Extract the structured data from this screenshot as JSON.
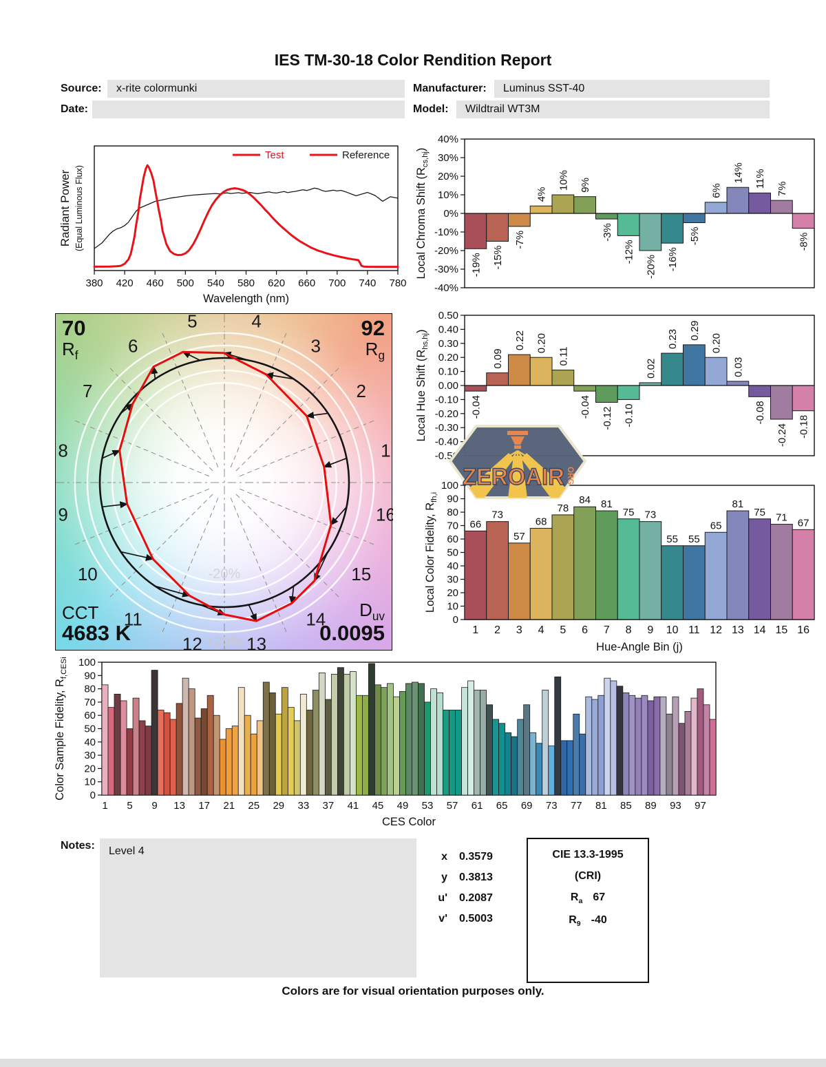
{
  "title": "IES TM-30-18 Color Rendition Report",
  "header": {
    "source_label": "Source:",
    "source_value": "x-rite colormunki",
    "date_label": "Date:",
    "date_value": "",
    "manufacturer_label": "Manufacturer:",
    "manufacturer_value": "Luminus SST-40",
    "model_label": "Model:",
    "model_value": "Wildtrail WT3M"
  },
  "watermark": {
    "name": "ZEROAIR",
    "suffix": "ORG"
  },
  "notes": {
    "label": "Notes:",
    "value": "Level 4"
  },
  "chromaticity": {
    "rows": [
      {
        "label": "x",
        "value": "0.3579"
      },
      {
        "label": "y",
        "value": "0.3813"
      },
      {
        "label": "u'",
        "value": "0.2087"
      },
      {
        "label": "v'",
        "value": "0.5003"
      }
    ]
  },
  "cri_box": {
    "title": "CIE 13.3-1995",
    "subtitle": "(CRI)",
    "ra_base": "R",
    "ra_sub": "a",
    "ra_value": "67",
    "r9_base": "R",
    "r9_sub": "9",
    "r9_value": "-40"
  },
  "footer": "Colors are for visual orientation purposes only.",
  "cvg": {
    "rf_value": "70",
    "rf_base": "R",
    "rf_sub": "f",
    "rg_value": "92",
    "rg_base": "R",
    "rg_sub": "g",
    "cct_label": "CCT",
    "cct_value": "4683 K",
    "duv_base": "D",
    "duv_sub": "uv",
    "duv_value": "0.0095",
    "inner_ring_label": "-20%",
    "outer_ring_label": "+20%"
  },
  "bin_colors": [
    "#a84f5a",
    "#b96355",
    "#cd8a46",
    "#ddb45e",
    "#aba452",
    "#82a156",
    "#5f9c5c",
    "#54bb95",
    "#74b0a4",
    "#35898d",
    "#3f77a2",
    "#94a8d6",
    "#8487bc",
    "#765a9f",
    "#a07da0",
    "#d480a9"
  ],
  "chart_data": [
    {
      "id": "spd",
      "type": "line",
      "xlabel": "Wavelength (nm)",
      "ylabel": "Radiant Power",
      "ylabel2": "(Equal Luminous Flux)",
      "xlim": [
        380,
        780
      ],
      "xtick_step": 40,
      "ylim": [
        0,
        1
      ],
      "grid": false,
      "legend_position": "top-right",
      "legend": [
        {
          "name": "Test",
          "swatch_color": "#e8121a",
          "text_color": "#e8121a"
        },
        {
          "name": "Reference",
          "swatch_color": "#e8121a",
          "text_color": "#1a1a1a"
        }
      ],
      "series": [
        {
          "name": "Test",
          "color": "#e8121a",
          "width": 3,
          "points": [
            [
              380,
              0.004
            ],
            [
              400,
              0.005
            ],
            [
              410,
              0.008
            ],
            [
              415,
              0.012
            ],
            [
              420,
              0.03
            ],
            [
              425,
              0.07
            ],
            [
              428,
              0.12
            ],
            [
              430,
              0.18
            ],
            [
              433,
              0.28
            ],
            [
              435,
              0.38
            ],
            [
              438,
              0.5
            ],
            [
              440,
              0.62
            ],
            [
              443,
              0.74
            ],
            [
              445,
              0.82
            ],
            [
              448,
              0.9
            ],
            [
              450,
              0.93
            ],
            [
              452,
              0.91
            ],
            [
              455,
              0.86
            ],
            [
              458,
              0.79
            ],
            [
              460,
              0.71
            ],
            [
              463,
              0.6
            ],
            [
              465,
              0.52
            ],
            [
              468,
              0.42
            ],
            [
              470,
              0.33
            ],
            [
              473,
              0.26
            ],
            [
              475,
              0.21
            ],
            [
              478,
              0.17
            ],
            [
              480,
              0.145
            ],
            [
              485,
              0.12
            ],
            [
              490,
              0.11
            ],
            [
              495,
              0.112
            ],
            [
              500,
              0.125
            ],
            [
              505,
              0.155
            ],
            [
              510,
              0.205
            ],
            [
              515,
              0.27
            ],
            [
              520,
              0.345
            ],
            [
              525,
              0.425
            ],
            [
              530,
              0.5
            ],
            [
              535,
              0.565
            ],
            [
              540,
              0.615
            ],
            [
              545,
              0.655
            ],
            [
              550,
              0.685
            ],
            [
              555,
              0.705
            ],
            [
              560,
              0.715
            ],
            [
              565,
              0.72
            ],
            [
              570,
              0.715
            ],
            [
              575,
              0.705
            ],
            [
              580,
              0.69
            ],
            [
              585,
              0.665
            ],
            [
              590,
              0.635
            ],
            [
              595,
              0.6
            ],
            [
              600,
              0.565
            ],
            [
              605,
              0.525
            ],
            [
              610,
              0.49
            ],
            [
              615,
              0.45
            ],
            [
              620,
              0.415
            ],
            [
              625,
              0.38
            ],
            [
              630,
              0.35
            ],
            [
              635,
              0.32
            ],
            [
              640,
              0.29
            ],
            [
              645,
              0.265
            ],
            [
              650,
              0.24
            ],
            [
              655,
              0.22
            ],
            [
              660,
              0.2
            ],
            [
              665,
              0.18
            ],
            [
              670,
              0.165
            ],
            [
              675,
              0.15
            ],
            [
              680,
              0.14
            ],
            [
              685,
              0.128
            ],
            [
              690,
              0.118
            ],
            [
              695,
              0.108
            ],
            [
              700,
              0.1
            ],
            [
              705,
              0.092
            ],
            [
              710,
              0.085
            ],
            [
              715,
              0.078
            ],
            [
              720,
              0.072
            ],
            [
              725,
              0.067
            ],
            [
              728,
              0.063
            ],
            [
              730,
              0.04
            ],
            [
              732,
              0.012
            ],
            [
              735,
              0.005
            ],
            [
              740,
              0.003
            ],
            [
              760,
              0.002
            ],
            [
              780,
              0.002
            ]
          ]
        },
        {
          "name": "Reference",
          "color": "#1a1a1a",
          "width": 1.3,
          "points": [
            [
              380,
              0.17
            ],
            [
              385,
              0.195
            ],
            [
              390,
              0.22
            ],
            [
              395,
              0.26
            ],
            [
              400,
              0.3
            ],
            [
              405,
              0.33
            ],
            [
              410,
              0.35
            ],
            [
              415,
              0.36
            ],
            [
              420,
              0.38
            ],
            [
              425,
              0.41
            ],
            [
              430,
              0.46
            ],
            [
              435,
              0.51
            ],
            [
              440,
              0.54
            ],
            [
              445,
              0.555
            ],
            [
              450,
              0.57
            ],
            [
              455,
              0.585
            ],
            [
              460,
              0.6
            ],
            [
              470,
              0.615
            ],
            [
              480,
              0.63
            ],
            [
              490,
              0.64
            ],
            [
              500,
              0.65
            ],
            [
              510,
              0.658
            ],
            [
              520,
              0.663
            ],
            [
              530,
              0.668
            ],
            [
              540,
              0.672
            ],
            [
              545,
              0.669
            ],
            [
              550,
              0.674
            ],
            [
              555,
              0.678
            ],
            [
              560,
              0.672
            ],
            [
              565,
              0.676
            ],
            [
              570,
              0.68
            ],
            [
              575,
              0.674
            ],
            [
              580,
              0.678
            ],
            [
              585,
              0.682
            ],
            [
              590,
              0.676
            ],
            [
              595,
              0.671
            ],
            [
              600,
              0.676
            ],
            [
              605,
              0.682
            ],
            [
              610,
              0.687
            ],
            [
              615,
              0.68
            ],
            [
              620,
              0.677
            ],
            [
              625,
              0.684
            ],
            [
              630,
              0.69
            ],
            [
              635,
              0.681
            ],
            [
              640,
              0.687
            ],
            [
              645,
              0.692
            ],
            [
              650,
              0.7
            ],
            [
              655,
              0.706
            ],
            [
              660,
              0.7
            ],
            [
              665,
              0.71
            ],
            [
              670,
              0.722
            ],
            [
              675,
              0.715
            ],
            [
              680,
              0.7
            ],
            [
              685,
              0.692
            ],
            [
              690,
              0.697
            ],
            [
              695,
              0.703
            ],
            [
              700,
              0.696
            ],
            [
              705,
              0.701
            ],
            [
              710,
              0.69
            ],
            [
              715,
              0.678
            ],
            [
              720,
              0.664
            ],
            [
              725,
              0.652
            ],
            [
              730,
              0.662
            ],
            [
              735,
              0.672
            ],
            [
              740,
              0.682
            ],
            [
              745,
              0.669
            ],
            [
              750,
              0.654
            ],
            [
              755,
              0.628
            ],
            [
              760,
              0.601
            ],
            [
              765,
              0.622
            ],
            [
              770,
              0.643
            ],
            [
              775,
              0.636
            ],
            [
              780,
              0.63
            ]
          ]
        }
      ]
    },
    {
      "id": "chroma_shift",
      "type": "bar",
      "ylabel": "Local Chroma Shift (R_{cs,hj})",
      "ylim": [
        -40,
        40
      ],
      "ytick_step": 10,
      "value_suffix": "%",
      "categories": [
        1,
        2,
        3,
        4,
        5,
        6,
        7,
        8,
        9,
        10,
        11,
        12,
        13,
        14,
        15,
        16
      ],
      "values": [
        -19,
        -15,
        -7,
        4,
        10,
        9,
        -3,
        -12,
        -20,
        -16,
        -5,
        6,
        14,
        11,
        7,
        -8
      ]
    },
    {
      "id": "hue_shift",
      "type": "bar",
      "ylabel": "Local Hue Shift (R_{hs,hj})",
      "ylim": [
        -0.5,
        0.5
      ],
      "ytick_step": 0.1,
      "categories": [
        1,
        2,
        3,
        4,
        5,
        6,
        7,
        8,
        9,
        10,
        11,
        12,
        13,
        14,
        15,
        16
      ],
      "values": [
        -0.04,
        0.09,
        0.22,
        0.2,
        0.11,
        -0.04,
        -0.12,
        -0.1,
        0.02,
        0.23,
        0.29,
        0.2,
        0.03,
        -0.08,
        -0.24,
        -0.18
      ]
    },
    {
      "id": "local_fidelity",
      "type": "bar",
      "ylabel": "Local Color Fidelity, R_{fh,i}",
      "xlabel": "Hue-Angle Bin (j)",
      "ylim": [
        0,
        100
      ],
      "ytick_step": 10,
      "categories": [
        1,
        2,
        3,
        4,
        5,
        6,
        7,
        8,
        9,
        10,
        11,
        12,
        13,
        14,
        15,
        16
      ],
      "values": [
        66,
        73,
        57,
        68,
        78,
        84,
        81,
        75,
        73,
        55,
        55,
        65,
        81,
        75,
        71,
        67
      ]
    },
    {
      "id": "ces_fidelity",
      "type": "bar",
      "ylabel": "Color Sample Fidelity, R_{f,CESi}",
      "xlabel": "CES Color",
      "ylim": [
        0,
        100
      ],
      "ytick_step": 10,
      "xticks": [
        1,
        5,
        9,
        13,
        17,
        21,
        25,
        29,
        33,
        37,
        41,
        45,
        49,
        53,
        57,
        61,
        65,
        69,
        73,
        77,
        81,
        85,
        89,
        93,
        97
      ],
      "values": [
        83,
        66,
        76,
        71,
        50,
        73,
        56,
        52,
        94,
        64,
        62,
        57,
        69,
        88,
        80,
        58,
        65,
        75,
        60,
        42,
        50,
        52,
        81,
        60,
        46,
        56,
        85,
        77,
        61,
        81,
        66,
        56,
        76,
        64,
        79,
        92,
        72,
        91,
        96,
        91,
        93,
        75,
        75,
        99,
        83,
        81,
        84,
        74,
        78,
        84,
        85,
        84,
        70,
        80,
        77,
        64,
        64,
        64,
        81,
        86,
        79,
        79,
        68,
        57,
        54,
        47,
        44,
        57,
        68,
        47,
        39,
        79,
        37,
        89,
        41,
        41,
        61,
        46,
        74,
        72,
        75,
        88,
        86,
        82,
        77,
        75,
        73,
        75,
        71,
        74,
        74,
        61,
        74,
        54,
        63,
        73,
        80,
        68,
        57
      ],
      "colors": [
        "#eab0c0",
        "#d4697e",
        "#6e3d44",
        "#df8d9e",
        "#943a44",
        "#c98189",
        "#8e3f49",
        "#803a43",
        "#3d3436",
        "#e5705c",
        "#d94f3c",
        "#e0604b",
        "#95503b",
        "#cfb8b0",
        "#c09781",
        "#8d5b45",
        "#784930",
        "#ad6242",
        "#c5956f",
        "#ec9132",
        "#f09e3e",
        "#eda449",
        "#f3e1c2",
        "#e8b050",
        "#f0a23a",
        "#eec488",
        "#7e7147",
        "#6b6039",
        "#e5c94f",
        "#bba441",
        "#e3cc57",
        "#cfc66f",
        "#efead0",
        "#6f663c",
        "#8e8d64",
        "#d4d7c1",
        "#5d5c41",
        "#c3cdab",
        "#3e4336",
        "#bfcaa9",
        "#d4e3c5",
        "#9cb845",
        "#90ad49",
        "#2f3c31",
        "#6f8b49",
        "#7da35b",
        "#a3c383",
        "#b9d191",
        "#669b56",
        "#5d8a64",
        "#6c9372",
        "#417050",
        "#1b9a70",
        "#c0e0d2",
        "#b7ddd0",
        "#189b80",
        "#149a82",
        "#109a87",
        "#c5e4da",
        "#d6ece7",
        "#a0b6ad",
        "#94ada7",
        "#40504f",
        "#1a9592",
        "#10908f",
        "#15818f",
        "#1b7186",
        "#4f8799",
        "#5b7787",
        "#7bb2cd",
        "#3a88b8",
        "#bfcfd8",
        "#64aedd",
        "#343a42",
        "#3066a6",
        "#2e6eb4",
        "#4a7cab",
        "#3a6fae",
        "#a9bbdf",
        "#98aad8",
        "#8d9fd3",
        "#ccd3ec",
        "#b9bfe4",
        "#33363e",
        "#8a87b8",
        "#a291c4",
        "#9181b7",
        "#9b8ac0",
        "#7c5f9e",
        "#8a6daa",
        "#b5aec0",
        "#8d8290",
        "#b79fb6",
        "#7e5573",
        "#a87d98",
        "#e2b6cb",
        "#a25a7e",
        "#c584a6",
        "#cf6e97"
      ]
    },
    {
      "id": "color_vector_graphic",
      "type": "polar",
      "rf": 70,
      "rg": 92,
      "cct_k": 4683,
      "duv": 0.0095,
      "bins": [
        1,
        2,
        3,
        4,
        5,
        6,
        7,
        8,
        9,
        10,
        11,
        12,
        13,
        14,
        15,
        16
      ],
      "chroma_shift_pct": [
        -19,
        -15,
        -7,
        4,
        10,
        9,
        -3,
        -12,
        -20,
        -16,
        -5,
        6,
        14,
        11,
        7,
        -8
      ],
      "hue_shift": [
        -0.04,
        0.09,
        0.22,
        0.2,
        0.11,
        -0.04,
        -0.12,
        -0.1,
        0.02,
        0.23,
        0.29,
        0.2,
        0.03,
        -0.08,
        -0.24,
        -0.18
      ],
      "ring_labels": {
        "inner": "-20%",
        "outer": "+20%"
      }
    }
  ]
}
